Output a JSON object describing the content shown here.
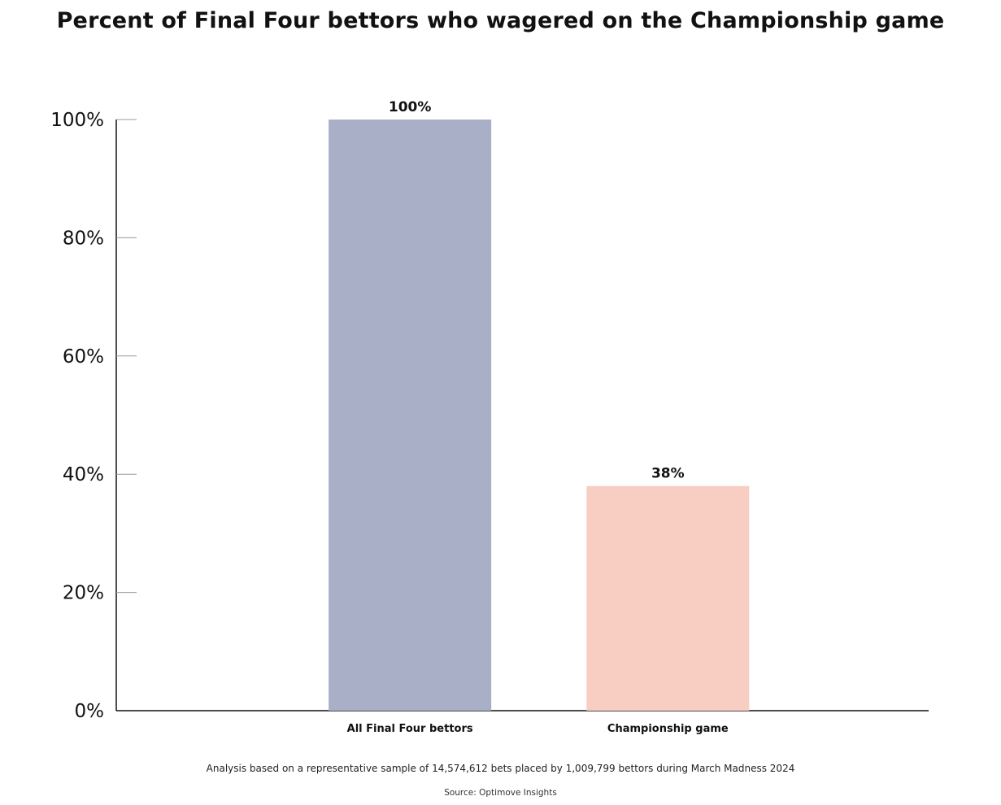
{
  "title": "Percent of Final Four bettors who wagered on the Championship game",
  "footnote": "Analysis based on a representative sample of 14,574,612 bets placed by 1,009,799 bettors during March Madness 2024",
  "source": "Source: Optimove Insights",
  "chart_data": {
    "type": "bar",
    "title": "Percent of Final Four bettors who wagered on the Championship game",
    "categories": [
      "All Final Four bettors",
      "Championship game"
    ],
    "values": [
      100,
      38
    ],
    "value_labels": [
      "100%",
      "38%"
    ],
    "colors": [
      "#a8afc6",
      "#f8cdc2"
    ],
    "ylim": [
      0,
      100
    ],
    "yticks": [
      0,
      20,
      40,
      60,
      80,
      100
    ],
    "ytick_labels": [
      "0%",
      "20%",
      "40%",
      "60%",
      "80%",
      "100%"
    ],
    "xlabel": "",
    "ylabel": "",
    "grid": false,
    "legend": "none"
  }
}
